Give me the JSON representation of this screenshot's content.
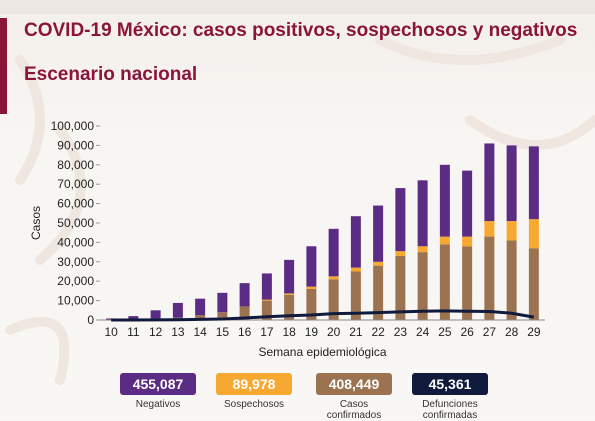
{
  "header": {
    "title": "COVID-19 México: casos positivos, sospechosos y negativos",
    "subtitle": "Escenario nacional"
  },
  "colors": {
    "negativos": "#5b2c83",
    "sospechosos": "#f7a830",
    "confirmados": "#9c7350",
    "defunciones": "#0f1a3d",
    "brand": "#8a1538"
  },
  "legend": [
    {
      "value": "455,087",
      "label": "Negativos",
      "color": "#5b2c83",
      "text_color": "#ffffff"
    },
    {
      "value": "89,978",
      "label": "Sospechosos",
      "color": "#f7a830",
      "text_color": "#ffffff"
    },
    {
      "value": "408,449",
      "label": "Casos confirmados",
      "color": "#9c7350",
      "text_color": "#ffffff"
    },
    {
      "value": "45,361",
      "label": "Defunciones confirmadas",
      "color": "#0f1a3d",
      "text_color": "#ffffff"
    }
  ],
  "chart_data": {
    "type": "bar",
    "stacked": true,
    "xlabel": "Semana epidemiológica",
    "ylabel": "Casos",
    "ylim": [
      0,
      100000
    ],
    "yticks": [
      "0",
      "10,000",
      "20,000",
      "30,000",
      "40,000",
      "50,000",
      "60,000",
      "70,000",
      "80,000",
      "90,000",
      "100,000"
    ],
    "categories": [
      "10",
      "11",
      "12",
      "13",
      "14",
      "15",
      "16",
      "17",
      "18",
      "19",
      "20",
      "21",
      "22",
      "23",
      "24",
      "25",
      "26",
      "27",
      "28",
      "29"
    ],
    "series": [
      {
        "name": "Casos confirmados",
        "values": [
          100,
          300,
          800,
          1200,
          2500,
          4000,
          7000,
          10000,
          13000,
          16000,
          21000,
          25000,
          28000,
          33000,
          35000,
          39000,
          38000,
          43000,
          41000,
          37000
        ]
      },
      {
        "name": "Sospechosos",
        "values": [
          0,
          0,
          0,
          0,
          0,
          0,
          0,
          500,
          700,
          1200,
          1500,
          2000,
          2000,
          2500,
          3000,
          4000,
          5000,
          8000,
          10000,
          15000
        ]
      },
      {
        "name": "Negativos",
        "values": [
          700,
          1700,
          4200,
          7600,
          8500,
          10000,
          12000,
          13500,
          17300,
          20800,
          24500,
          26500,
          29000,
          32500,
          34000,
          37000,
          34000,
          40000,
          39000,
          37500
        ]
      }
    ],
    "line": {
      "name": "Defunciones confirmadas",
      "values": [
        0,
        20,
        50,
        150,
        300,
        500,
        1000,
        1700,
        2200,
        2600,
        3300,
        3500,
        3800,
        4200,
        4500,
        4700,
        4500,
        4400,
        3500,
        1500
      ]
    }
  }
}
